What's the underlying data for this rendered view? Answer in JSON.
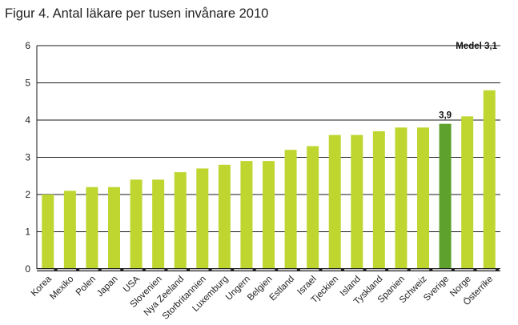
{
  "chart_data": {
    "type": "bar",
    "title": "Figur 4. Antal läkare per tusen invånare 2010",
    "xlabel": "",
    "ylabel": "",
    "ylim": [
      0,
      6
    ],
    "yticks": [
      "0",
      "1",
      "2",
      "3",
      "4",
      "5",
      "6"
    ],
    "grid": true,
    "categories": [
      "Korea",
      "Mexiko",
      "Polen",
      "Japan",
      "USA",
      "Slovenien",
      "Nya Zeeland",
      "Storbritannien",
      "Luxemburg",
      "Ungern",
      "Belgien",
      "Estland",
      "Israel",
      "Tjeckien",
      "Island",
      "Tyskland",
      "Spanien",
      "Schweiz",
      "Sverige",
      "Norge",
      "Österrike"
    ],
    "values": [
      2.0,
      2.1,
      2.2,
      2.2,
      2.4,
      2.4,
      2.6,
      2.7,
      2.8,
      2.9,
      2.9,
      3.2,
      3.3,
      3.6,
      3.6,
      3.7,
      3.8,
      3.8,
      3.9,
      4.1,
      4.8
    ],
    "highlight_category": "Sverige",
    "highlight_label": "3,9",
    "mean_label": "Medel 3,1",
    "colors": {
      "bar": "#bfd630",
      "highlight": "#5ea22d",
      "grid": "#1a1a1a"
    }
  }
}
